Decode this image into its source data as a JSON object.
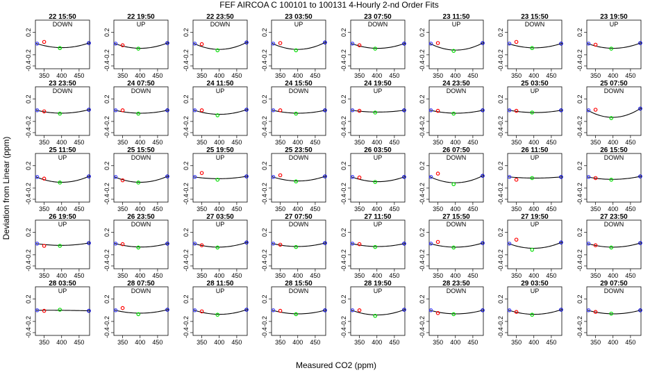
{
  "chart_data": {
    "type": "scatter",
    "title": "FEF   AIRCOA C   100101 to 100131   4-Hourly 2-nd Order Fits",
    "xlabel": "Measured CO2 (ppm)",
    "ylabel": "Deviation from Linear (ppm)",
    "xlim": [
      325,
      480
    ],
    "ylim": [
      -0.45,
      0.42
    ],
    "x_ticks": [
      "350",
      "400",
      "450"
    ],
    "y_ticks": [
      "-0.4",
      "-0.2",
      "0.2"
    ],
    "standards_x": [
      330,
      350,
      395,
      478
    ],
    "point_colors": [
      "#4040ff",
      "#ff0000",
      "#00dd00",
      "#0000cc"
    ],
    "fit_color": "#000000",
    "panels": [
      {
        "time": "22 15:50",
        "dir": "DOWN",
        "y": [
          0.0,
          0.03,
          -0.08,
          0.01
        ],
        "fit": [
          0.0,
          -0.04,
          -0.07,
          0.01
        ]
      },
      {
        "time": "22 19:50",
        "dir": "UP",
        "y": [
          0.0,
          -0.03,
          -0.09,
          0.01
        ],
        "fit": [
          0.0,
          -0.05,
          -0.08,
          0.01
        ]
      },
      {
        "time": "22 23:50",
        "dir": "DOWN",
        "y": [
          0.0,
          -0.01,
          -0.12,
          0.02
        ],
        "fit": [
          0.0,
          -0.06,
          -0.1,
          0.02
        ]
      },
      {
        "time": "23 03:50",
        "dir": "UP",
        "y": [
          0.0,
          0.01,
          -0.12,
          0.02
        ],
        "fit": [
          0.0,
          -0.06,
          -0.1,
          0.02
        ]
      },
      {
        "time": "23 07:50",
        "dir": "DOWN",
        "y": [
          0.0,
          -0.03,
          -0.09,
          0.0
        ],
        "fit": [
          0.0,
          -0.05,
          -0.08,
          0.0
        ]
      },
      {
        "time": "23 11:50",
        "dir": "UP",
        "y": [
          0.0,
          0.01,
          -0.13,
          0.01
        ],
        "fit": [
          0.0,
          -0.07,
          -0.11,
          0.01
        ]
      },
      {
        "time": "23 15:50",
        "dir": "DOWN",
        "y": [
          0.0,
          0.03,
          -0.08,
          0.0
        ],
        "fit": [
          0.0,
          -0.05,
          -0.07,
          0.0
        ]
      },
      {
        "time": "23 19:50",
        "dir": "UP",
        "y": [
          0.0,
          -0.02,
          -0.09,
          0.01
        ],
        "fit": [
          0.0,
          -0.05,
          -0.08,
          0.01
        ]
      },
      {
        "time": "23 23:50",
        "dir": "DOWN",
        "y": [
          0.0,
          -0.02,
          -0.06,
          0.01
        ],
        "fit": [
          0.0,
          -0.03,
          -0.05,
          0.01
        ]
      },
      {
        "time": "24 07:50",
        "dir": "DOWN",
        "y": [
          0.0,
          0.0,
          -0.06,
          0.0
        ],
        "fit": [
          0.0,
          -0.03,
          -0.05,
          0.0
        ]
      },
      {
        "time": "24 11:50",
        "dir": "UP",
        "y": [
          0.0,
          0.0,
          -0.09,
          0.01
        ],
        "fit": [
          0.0,
          -0.04,
          -0.07,
          0.01
        ]
      },
      {
        "time": "24 15:50",
        "dir": "DOWN",
        "y": [
          0.0,
          0.0,
          -0.06,
          0.0
        ],
        "fit": [
          0.0,
          -0.03,
          -0.05,
          0.0
        ]
      },
      {
        "time": "24 19:50",
        "dir": "UP",
        "y": [
          0.0,
          -0.01,
          -0.04,
          0.0
        ],
        "fit": [
          0.0,
          -0.02,
          -0.03,
          0.0
        ]
      },
      {
        "time": "24 23:50",
        "dir": "DOWN",
        "y": [
          0.0,
          -0.01,
          -0.06,
          0.0
        ],
        "fit": [
          0.0,
          -0.03,
          -0.05,
          0.0
        ]
      },
      {
        "time": "25 03:50",
        "dir": "UP",
        "y": [
          0.0,
          -0.01,
          -0.04,
          0.0
        ],
        "fit": [
          0.0,
          -0.02,
          -0.04,
          0.0
        ]
      },
      {
        "time": "25 07:50",
        "dir": "DOWN",
        "y": [
          0.0,
          0.01,
          -0.14,
          0.03
        ],
        "fit": [
          0.0,
          -0.08,
          -0.12,
          0.03
        ]
      },
      {
        "time": "25 11:50",
        "dir": "UP",
        "y": [
          0.0,
          -0.03,
          -0.1,
          0.01
        ],
        "fit": [
          0.0,
          -0.06,
          -0.09,
          0.01
        ]
      },
      {
        "time": "25 15:50",
        "dir": "DOWN",
        "y": [
          0.0,
          -0.06,
          -0.1,
          0.01
        ],
        "fit": [
          0.0,
          -0.06,
          -0.09,
          0.01
        ]
      },
      {
        "time": "25 19:50",
        "dir": "UP",
        "y": [
          0.0,
          0.07,
          -0.05,
          0.01
        ],
        "fit": [
          0.0,
          -0.02,
          -0.03,
          0.01
        ]
      },
      {
        "time": "25 23:50",
        "dir": "DOWN",
        "y": [
          0.0,
          0.03,
          -0.08,
          0.01
        ],
        "fit": [
          0.0,
          -0.04,
          -0.07,
          0.01
        ]
      },
      {
        "time": "26 03:50",
        "dir": "UP",
        "y": [
          0.0,
          -0.01,
          -0.09,
          0.0
        ],
        "fit": [
          0.0,
          -0.05,
          -0.08,
          0.0
        ]
      },
      {
        "time": "26 07:50",
        "dir": "DOWN",
        "y": [
          0.0,
          0.06,
          -0.13,
          0.02
        ],
        "fit": [
          0.0,
          -0.06,
          -0.1,
          0.02
        ]
      },
      {
        "time": "26 11:50",
        "dir": "UP",
        "y": [
          0.0,
          -0.05,
          -0.02,
          0.0
        ],
        "fit": [
          0.0,
          -0.01,
          -0.02,
          0.0
        ]
      },
      {
        "time": "26 15:50",
        "dir": "DOWN",
        "y": [
          0.0,
          -0.02,
          -0.05,
          0.01
        ],
        "fit": [
          0.0,
          -0.03,
          -0.04,
          0.01
        ]
      },
      {
        "time": "26 19:50",
        "dir": "UP",
        "y": [
          0.0,
          -0.04,
          -0.04,
          0.01
        ],
        "fit": [
          0.0,
          -0.02,
          -0.03,
          0.01
        ]
      },
      {
        "time": "26 23:50",
        "dir": "DOWN",
        "y": [
          0.0,
          -0.01,
          -0.07,
          0.0
        ],
        "fit": [
          0.0,
          -0.03,
          -0.06,
          0.0
        ]
      },
      {
        "time": "27 03:50",
        "dir": "UP",
        "y": [
          0.0,
          -0.03,
          -0.07,
          0.02
        ],
        "fit": [
          0.0,
          -0.04,
          -0.06,
          0.02
        ]
      },
      {
        "time": "27 07:50",
        "dir": "DOWN",
        "y": [
          0.0,
          -0.02,
          -0.06,
          0.01
        ],
        "fit": [
          0.0,
          -0.03,
          -0.05,
          0.01
        ]
      },
      {
        "time": "27 11:50",
        "dir": "UP",
        "y": [
          0.0,
          -0.01,
          -0.06,
          0.0
        ],
        "fit": [
          0.0,
          -0.03,
          -0.05,
          0.0
        ]
      },
      {
        "time": "27 15:50",
        "dir": "DOWN",
        "y": [
          0.0,
          0.03,
          -0.07,
          0.01
        ],
        "fit": [
          0.0,
          -0.04,
          -0.06,
          0.01
        ]
      },
      {
        "time": "27 19:50",
        "dir": "UP",
        "y": [
          0.0,
          0.07,
          -0.11,
          0.02
        ],
        "fit": [
          0.0,
          -0.05,
          -0.08,
          0.02
        ]
      },
      {
        "time": "27 23:50",
        "dir": "DOWN",
        "y": [
          0.0,
          -0.03,
          -0.07,
          0.01
        ],
        "fit": [
          0.0,
          -0.04,
          -0.06,
          0.01
        ]
      },
      {
        "time": "28 03:50",
        "dir": "UP",
        "y": [
          0.0,
          -0.01,
          0.01,
          -0.01
        ],
        "fit": [
          0.0,
          0.0,
          0.0,
          -0.01
        ]
      },
      {
        "time": "28 07:50",
        "dir": "DOWN",
        "y": [
          0.0,
          0.04,
          -0.07,
          0.01
        ],
        "fit": [
          0.0,
          -0.03,
          -0.05,
          0.01
        ]
      },
      {
        "time": "28 11:50",
        "dir": "UP",
        "y": [
          0.0,
          -0.02,
          -0.08,
          0.01
        ],
        "fit": [
          0.0,
          -0.04,
          -0.07,
          0.01
        ]
      },
      {
        "time": "28 15:50",
        "dir": "DOWN",
        "y": [
          0.0,
          -0.01,
          -0.07,
          0.0
        ],
        "fit": [
          0.0,
          -0.04,
          -0.06,
          0.0
        ]
      },
      {
        "time": "28 19:50",
        "dir": "UP",
        "y": [
          0.0,
          0.0,
          -0.1,
          0.01
        ],
        "fit": [
          0.0,
          -0.05,
          -0.08,
          0.01
        ]
      },
      {
        "time": "28 23:50",
        "dir": "DOWN",
        "y": [
          0.0,
          -0.05,
          -0.07,
          0.0
        ],
        "fit": [
          0.0,
          -0.04,
          -0.06,
          0.0
        ]
      },
      {
        "time": "29 03:50",
        "dir": "UP",
        "y": [
          0.0,
          -0.03,
          -0.08,
          0.01
        ],
        "fit": [
          0.0,
          -0.04,
          -0.07,
          0.01
        ]
      },
      {
        "time": "29 07:50",
        "dir": "DOWN",
        "y": [
          0.0,
          -0.03,
          -0.06,
          0.0
        ],
        "fit": [
          0.0,
          -0.04,
          -0.06,
          0.0
        ]
      }
    ]
  }
}
